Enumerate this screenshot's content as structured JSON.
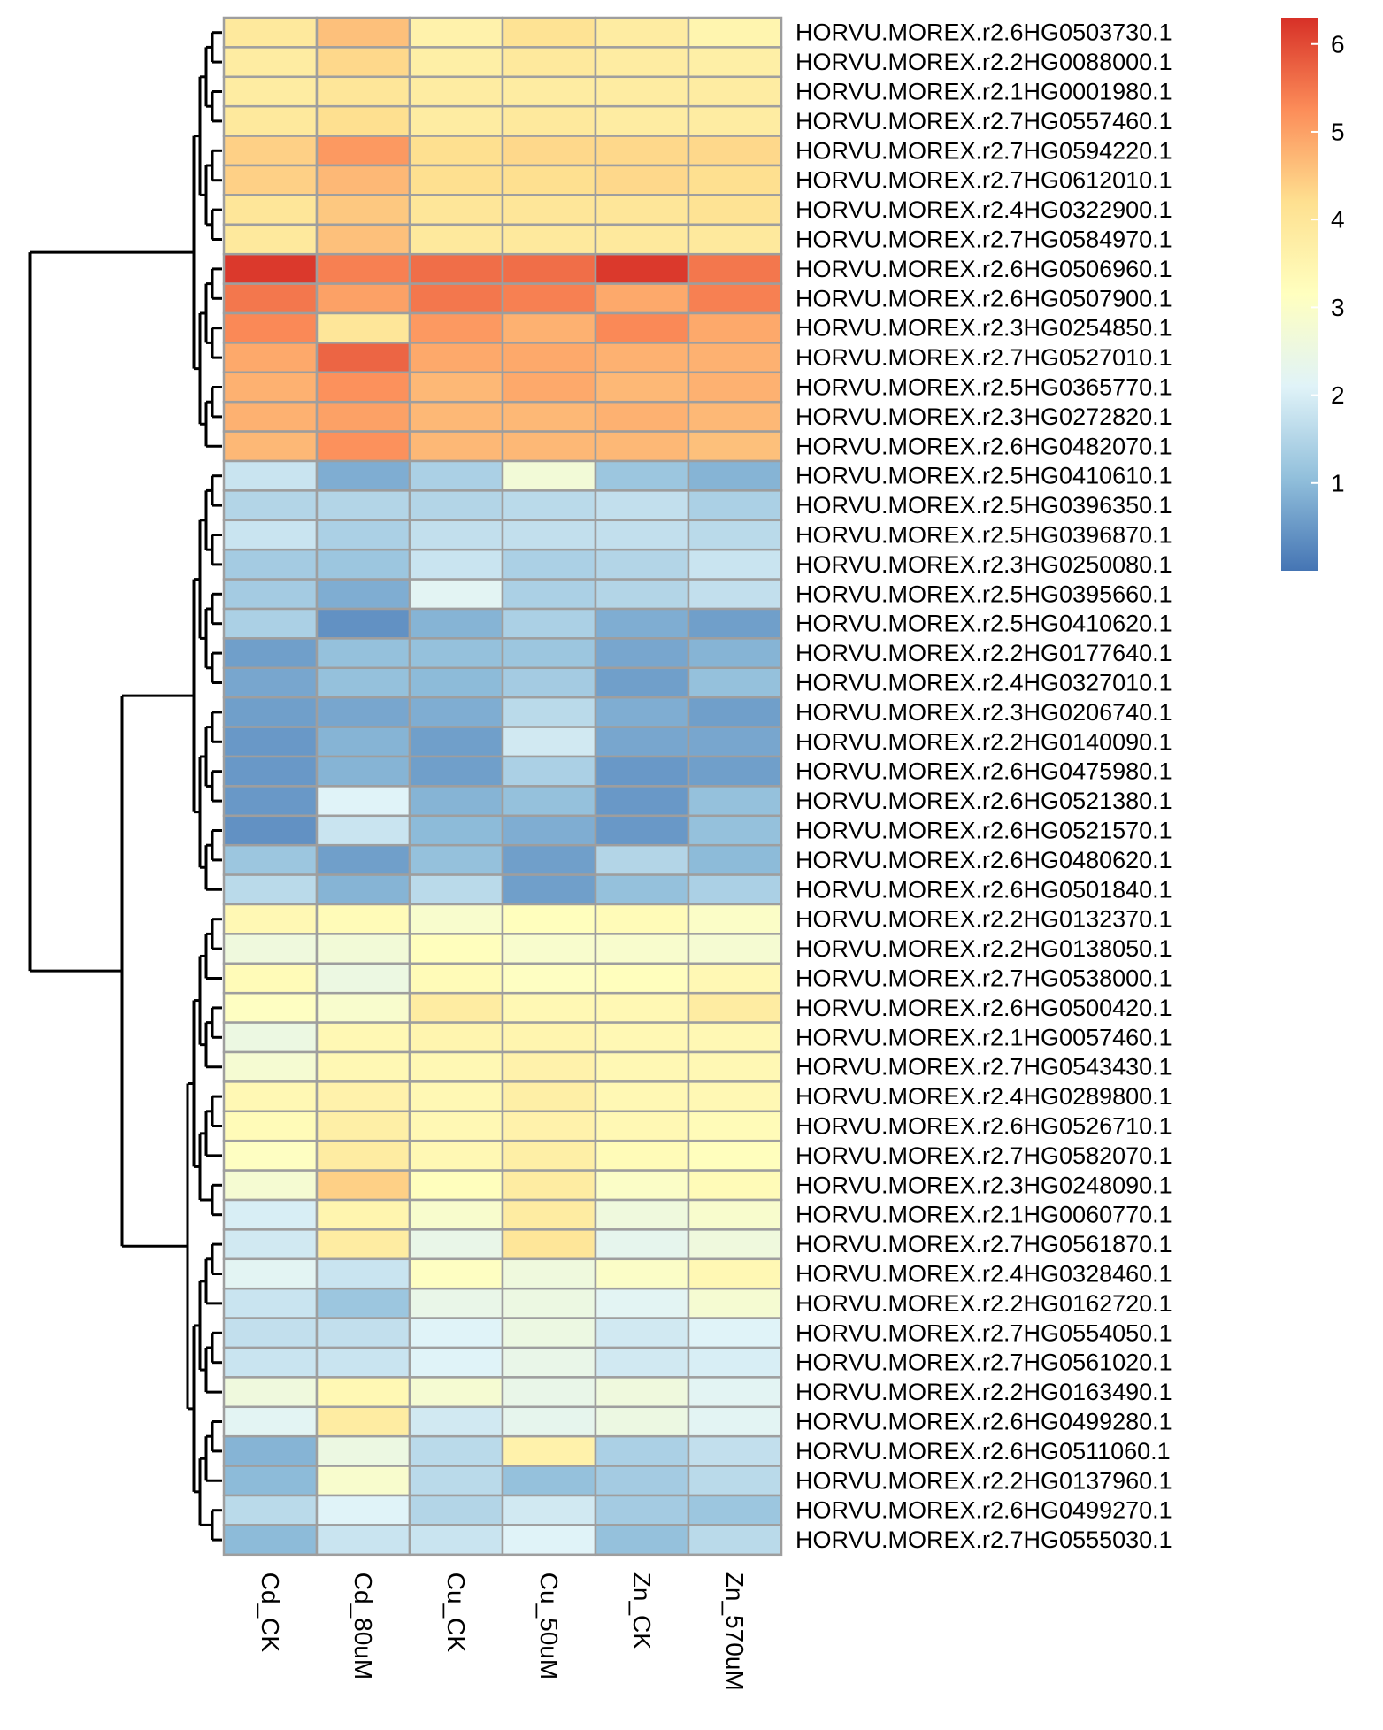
{
  "chart_data": {
    "type": "heatmap",
    "columns": [
      "Cd_CK",
      "Cd_80uM",
      "Cu_CK",
      "Cu_50uM",
      "Zn_CK",
      "Zn_570uM"
    ],
    "rows": [
      "HORVU.MOREX.r2.6HG0503730.1",
      "HORVU.MOREX.r2.2HG0088000.1",
      "HORVU.MOREX.r2.1HG0001980.1",
      "HORVU.MOREX.r2.7HG0557460.1",
      "HORVU.MOREX.r2.7HG0594220.1",
      "HORVU.MOREX.r2.7HG0612010.1",
      "HORVU.MOREX.r2.4HG0322900.1",
      "HORVU.MOREX.r2.7HG0584970.1",
      "HORVU.MOREX.r2.6HG0506960.1",
      "HORVU.MOREX.r2.6HG0507900.1",
      "HORVU.MOREX.r2.3HG0254850.1",
      "HORVU.MOREX.r2.7HG0527010.1",
      "HORVU.MOREX.r2.5HG0365770.1",
      "HORVU.MOREX.r2.3HG0272820.1",
      "HORVU.MOREX.r2.6HG0482070.1",
      "HORVU.MOREX.r2.5HG0410610.1",
      "HORVU.MOREX.r2.5HG0396350.1",
      "HORVU.MOREX.r2.5HG0396870.1",
      "HORVU.MOREX.r2.3HG0250080.1",
      "HORVU.MOREX.r2.5HG0395660.1",
      "HORVU.MOREX.r2.5HG0410620.1",
      "HORVU.MOREX.r2.2HG0177640.1",
      "HORVU.MOREX.r2.4HG0327010.1",
      "HORVU.MOREX.r2.3HG0206740.1",
      "HORVU.MOREX.r2.2HG0140090.1",
      "HORVU.MOREX.r2.6HG0475980.1",
      "HORVU.MOREX.r2.6HG0521380.1",
      "HORVU.MOREX.r2.6HG0521570.1",
      "HORVU.MOREX.r2.6HG0480620.1",
      "HORVU.MOREX.r2.6HG0501840.1",
      "HORVU.MOREX.r2.2HG0132370.1",
      "HORVU.MOREX.r2.2HG0138050.1",
      "HORVU.MOREX.r2.7HG0538000.1",
      "HORVU.MOREX.r2.6HG0500420.1",
      "HORVU.MOREX.r2.1HG0057460.1",
      "HORVU.MOREX.r2.7HG0543430.1",
      "HORVU.MOREX.r2.4HG0289800.1",
      "HORVU.MOREX.r2.6HG0526710.1",
      "HORVU.MOREX.r2.7HG0582070.1",
      "HORVU.MOREX.r2.3HG0248090.1",
      "HORVU.MOREX.r2.1HG0060770.1",
      "HORVU.MOREX.r2.7HG0561870.1",
      "HORVU.MOREX.r2.4HG0328460.1",
      "HORVU.MOREX.r2.2HG0162720.1",
      "HORVU.MOREX.r2.7HG0554050.1",
      "HORVU.MOREX.r2.7HG0561020.1",
      "HORVU.MOREX.r2.2HG0163490.1",
      "HORVU.MOREX.r2.6HG0499280.1",
      "HORVU.MOREX.r2.6HG0511060.1",
      "HORVU.MOREX.r2.2HG0137960.1",
      "HORVU.MOREX.r2.6HG0499270.1",
      "HORVU.MOREX.r2.7HG0555030.1"
    ],
    "values": [
      [
        3.9,
        4.6,
        3.6,
        4.1,
        3.8,
        3.5
      ],
      [
        3.8,
        4.3,
        3.7,
        3.9,
        3.8,
        3.7
      ],
      [
        3.8,
        4.0,
        3.8,
        3.8,
        3.8,
        3.8
      ],
      [
        3.9,
        4.2,
        3.8,
        3.9,
        3.8,
        3.8
      ],
      [
        4.4,
        5.1,
        4.2,
        4.3,
        4.3,
        4.3
      ],
      [
        4.4,
        4.7,
        4.2,
        4.2,
        4.3,
        4.2
      ],
      [
        4.0,
        4.5,
        4.0,
        4.0,
        4.0,
        4.1
      ],
      [
        3.9,
        4.6,
        3.9,
        3.9,
        3.9,
        3.9
      ],
      [
        6.2,
        5.4,
        5.6,
        5.6,
        6.2,
        5.5
      ],
      [
        5.5,
        5.0,
        5.5,
        5.4,
        4.9,
        5.4
      ],
      [
        5.3,
        4.0,
        5.1,
        4.8,
        5.3,
        4.9
      ],
      [
        4.9,
        5.7,
        4.9,
        4.9,
        4.8,
        4.8
      ],
      [
        4.8,
        5.2,
        4.7,
        4.9,
        4.7,
        4.8
      ],
      [
        4.8,
        5.0,
        4.7,
        4.7,
        4.8,
        4.7
      ],
      [
        4.7,
        5.2,
        4.7,
        4.7,
        4.7,
        4.6
      ],
      [
        1.8,
        0.8,
        1.4,
        2.7,
        1.2,
        0.9
      ],
      [
        1.5,
        1.5,
        1.5,
        1.6,
        1.7,
        1.4
      ],
      [
        1.8,
        1.4,
        1.7,
        1.7,
        1.7,
        1.6
      ],
      [
        1.3,
        1.2,
        1.8,
        1.4,
        1.5,
        1.8
      ],
      [
        1.3,
        0.8,
        2.2,
        1.4,
        1.5,
        1.7
      ],
      [
        1.4,
        0.4,
        0.9,
        1.4,
        0.8,
        0.6
      ],
      [
        0.6,
        1.1,
        1.1,
        1.2,
        0.7,
        0.9
      ],
      [
        0.7,
        1.1,
        1.0,
        1.3,
        0.6,
        1.1
      ],
      [
        0.6,
        0.7,
        0.8,
        1.6,
        0.8,
        0.6
      ],
      [
        0.5,
        0.9,
        0.6,
        1.9,
        0.7,
        0.7
      ],
      [
        0.5,
        0.9,
        0.6,
        1.4,
        0.5,
        0.6
      ],
      [
        0.5,
        2.1,
        0.9,
        1.1,
        0.5,
        1.1
      ],
      [
        0.4,
        1.8,
        1.0,
        0.8,
        0.5,
        1.1
      ],
      [
        1.2,
        0.6,
        1.1,
        0.6,
        1.5,
        1.0
      ],
      [
        1.6,
        0.9,
        1.6,
        0.6,
        1.1,
        1.4
      ],
      [
        3.4,
        3.3,
        2.9,
        3.2,
        3.3,
        3.0
      ],
      [
        2.6,
        2.7,
        3.2,
        2.9,
        2.9,
        2.8
      ],
      [
        3.3,
        2.5,
        3.3,
        3.1,
        3.2,
        3.4
      ],
      [
        3.1,
        2.9,
        3.8,
        3.4,
        3.4,
        3.8
      ],
      [
        2.5,
        3.4,
        3.5,
        3.5,
        3.4,
        3.4
      ],
      [
        2.8,
        3.4,
        3.4,
        3.6,
        3.4,
        3.4
      ],
      [
        3.4,
        3.6,
        3.4,
        3.7,
        3.4,
        3.4
      ],
      [
        3.3,
        3.7,
        3.4,
        3.6,
        3.4,
        3.3
      ],
      [
        3.1,
        3.8,
        3.4,
        3.7,
        3.3,
        3.2
      ],
      [
        2.8,
        4.4,
        3.2,
        3.8,
        3.0,
        3.3
      ],
      [
        2.0,
        3.5,
        2.9,
        3.8,
        2.6,
        2.9
      ],
      [
        1.9,
        3.8,
        2.4,
        4.0,
        2.3,
        2.6
      ],
      [
        2.2,
        1.8,
        3.1,
        2.6,
        3.0,
        3.4
      ],
      [
        1.8,
        1.2,
        2.4,
        2.5,
        2.2,
        2.8
      ],
      [
        1.7,
        1.7,
        2.1,
        2.5,
        1.9,
        2.1
      ],
      [
        1.8,
        1.8,
        2.1,
        2.4,
        1.9,
        2.0
      ],
      [
        2.6,
        3.4,
        2.8,
        2.4,
        2.6,
        2.2
      ],
      [
        2.2,
        3.8,
        1.9,
        2.3,
        2.5,
        2.2
      ],
      [
        0.9,
        2.5,
        1.6,
        3.6,
        1.4,
        1.7
      ],
      [
        1.0,
        2.9,
        1.6,
        1.1,
        1.3,
        1.6
      ],
      [
        1.6,
        2.1,
        1.5,
        1.9,
        1.3,
        1.2
      ],
      [
        1.0,
        1.8,
        1.8,
        2.1,
        1.1,
        1.6
      ]
    ],
    "legend_ticks": [
      "1",
      "2",
      "3",
      "4",
      "5",
      "6"
    ],
    "legend_placement": "top-right",
    "color_range": [
      0,
      6.3
    ],
    "colors": {
      "scale": [
        "#4575b4",
        "#91bfdb",
        "#e0f3f8",
        "#ffffbf",
        "#fee090",
        "#fc8d59",
        "#d73027"
      ],
      "cell_border": "#9e9e9e",
      "dendrogram": "#000000"
    },
    "dendrogram_clusters": [
      {
        "label": "",
        "rows": [
          0,
          14
        ]
      },
      {
        "label": "",
        "rows": [
          15,
          29
        ]
      },
      {
        "label": "",
        "rows": [
          30,
          51
        ]
      }
    ]
  }
}
